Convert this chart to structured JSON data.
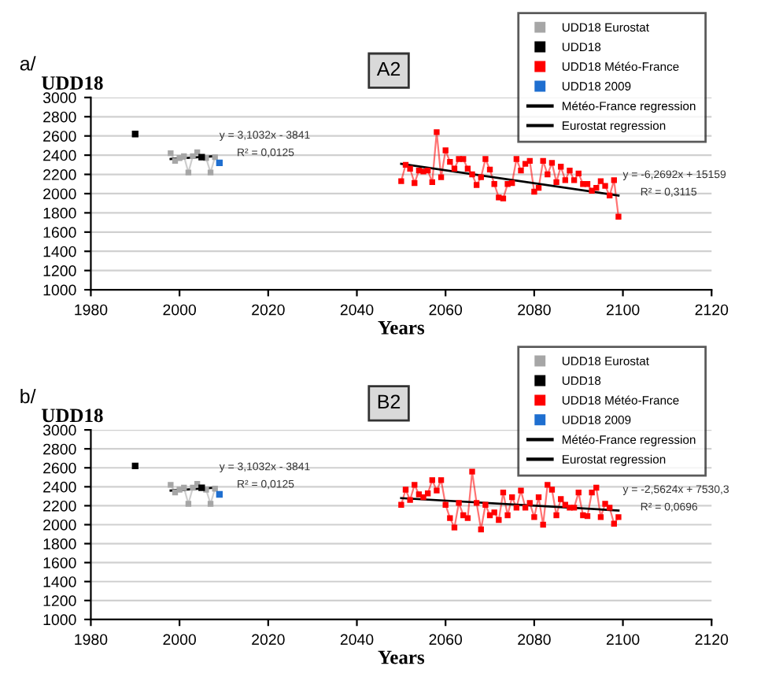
{
  "chart_data": [
    {
      "type": "line",
      "annotations": [
        "a/",
        "A2",
        "y = 3,1032x - 3841",
        "R² = 0,0125",
        "y = -6,2692x + 15159",
        "R² = 0,3115"
      ],
      "xlabel": "Years",
      "ylabel": "UDD18",
      "xlim": [
        1980,
        2120
      ],
      "xticks": [
        1980,
        2000,
        2020,
        2040,
        2060,
        2080,
        2100,
        2120
      ],
      "ylim": [
        1000,
        3000
      ],
      "yticks": [
        1000,
        1200,
        1400,
        1600,
        1800,
        2000,
        2200,
        2400,
        2600,
        2800,
        3000
      ],
      "grid": "y",
      "legend": "top right",
      "marker": "square",
      "series": [
        {
          "name": "UDD18 Eurostat",
          "color": "#a6a6a6",
          "x": [
            1998,
            1999,
            2000,
            2001,
            2002,
            2003,
            2004,
            2005,
            2006,
            2007,
            2008
          ],
          "values": [
            2420,
            2340,
            2370,
            2390,
            2220,
            2390,
            2430,
            null,
            2370,
            2220,
            2380
          ]
        },
        {
          "name": "UDD18",
          "type": "scatter",
          "color": "#000000",
          "x": [
            1990,
            2005
          ],
          "values": [
            2620,
            2380
          ]
        },
        {
          "name": "UDD18 Météo-France",
          "color": "#ff0000",
          "x": [
            2050,
            2051,
            2052,
            2053,
            2054,
            2055,
            2056,
            2057,
            2058,
            2059,
            2060,
            2061,
            2062,
            2063,
            2064,
            2065,
            2066,
            2067,
            2068,
            2069,
            2070,
            2071,
            2072,
            2073,
            2074,
            2075,
            2076,
            2077,
            2078,
            2079,
            2080,
            2081,
            2082,
            2083,
            2084,
            2085,
            2086,
            2087,
            2088,
            2089,
            2090,
            2091,
            2092,
            2093,
            2094,
            2095,
            2096,
            2097,
            2098,
            2099
          ],
          "values": [
            2130,
            2300,
            2260,
            2110,
            2240,
            2230,
            2240,
            2120,
            2640,
            2170,
            2450,
            2330,
            2260,
            2360,
            2360,
            2260,
            2200,
            2090,
            2170,
            2360,
            2250,
            2100,
            1960,
            1950,
            2100,
            2110,
            2360,
            2240,
            2310,
            2340,
            2020,
            2060,
            2340,
            2200,
            2320,
            2120,
            2280,
            2140,
            2240,
            2140,
            2210,
            2100,
            2100,
            2030,
            2060,
            2130,
            2080,
            1980,
            2140,
            1760
          ]
        },
        {
          "name": "UDD18 2009",
          "type": "scatter",
          "color": "#1f6fd0",
          "x": [
            2009
          ],
          "values": [
            2320
          ]
        },
        {
          "name": "Météo-France regression",
          "color": "#000000",
          "marker": "none",
          "x": [
            2050,
            2099
          ],
          "values": [
            2310,
            1980
          ]
        },
        {
          "name": "Eurostat regression",
          "color": "#000000",
          "marker": "none",
          "x": [
            1998,
            2008
          ],
          "values": [
            2360,
            2390
          ]
        }
      ]
    },
    {
      "type": "line",
      "annotations": [
        "b/",
        "B2",
        "y = 3,1032x - 3841",
        "R² = 0,0125",
        "y = -2,5624x + 7530,3",
        "R² = 0,0696"
      ],
      "xlabel": "Years",
      "ylabel": "UDD18",
      "xlim": [
        1980,
        2120
      ],
      "xticks": [
        1980,
        2000,
        2020,
        2040,
        2060,
        2080,
        2100,
        2120
      ],
      "ylim": [
        1000,
        3000
      ],
      "yticks": [
        1000,
        1200,
        1400,
        1600,
        1800,
        2000,
        2200,
        2400,
        2600,
        2800,
        3000
      ],
      "grid": "y",
      "legend": "top right",
      "marker": "square",
      "series": [
        {
          "name": "UDD18 Eurostat",
          "color": "#a6a6a6",
          "x": [
            1998,
            1999,
            2000,
            2001,
            2002,
            2003,
            2004,
            2005,
            2006,
            2007,
            2008
          ],
          "values": [
            2420,
            2340,
            2370,
            2390,
            2220,
            2390,
            2430,
            null,
            2370,
            2220,
            2380
          ]
        },
        {
          "name": "UDD18",
          "type": "scatter",
          "color": "#000000",
          "x": [
            1990,
            2005
          ],
          "values": [
            2620,
            2390
          ]
        },
        {
          "name": "UDD18 Météo-France",
          "color": "#ff0000",
          "x": [
            2050,
            2051,
            2052,
            2053,
            2054,
            2055,
            2056,
            2057,
            2058,
            2059,
            2060,
            2061,
            2062,
            2063,
            2064,
            2065,
            2066,
            2067,
            2068,
            2069,
            2070,
            2071,
            2072,
            2073,
            2074,
            2075,
            2076,
            2077,
            2078,
            2079,
            2080,
            2081,
            2082,
            2083,
            2084,
            2085,
            2086,
            2087,
            2088,
            2089,
            2090,
            2091,
            2092,
            2093,
            2094,
            2095,
            2096,
            2097,
            2098,
            2099
          ],
          "values": [
            2210,
            2370,
            2260,
            2420,
            2320,
            2290,
            2330,
            2470,
            2360,
            2470,
            2210,
            2070,
            1970,
            2230,
            2100,
            2070,
            2560,
            2230,
            1950,
            2210,
            2100,
            2130,
            2050,
            2340,
            2100,
            2290,
            2180,
            2360,
            2180,
            2230,
            2080,
            2290,
            2000,
            2420,
            2370,
            2100,
            2270,
            2210,
            2180,
            2180,
            2340,
            2100,
            2090,
            2340,
            2390,
            2080,
            2220,
            2180,
            2010,
            2080
          ]
        },
        {
          "name": "UDD18 2009",
          "type": "scatter",
          "color": "#1f6fd0",
          "x": [
            2009
          ],
          "values": [
            2320
          ]
        },
        {
          "name": "Météo-France regression",
          "color": "#000000",
          "marker": "none",
          "x": [
            2050,
            2099
          ],
          "values": [
            2280,
            2150
          ]
        },
        {
          "name": "Eurostat regression",
          "color": "#000000",
          "marker": "none",
          "x": [
            1998,
            2008
          ],
          "values": [
            2360,
            2390
          ]
        }
      ]
    }
  ]
}
